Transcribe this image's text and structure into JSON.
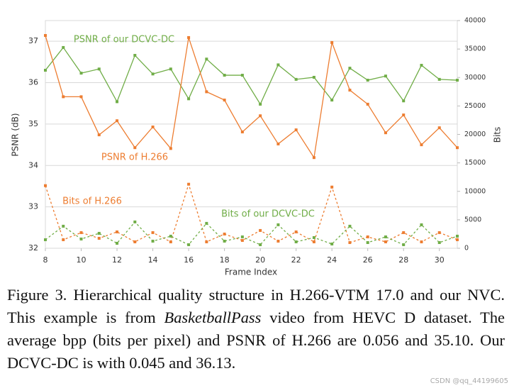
{
  "chart_data": {
    "type": "line",
    "x_label": "Frame Index",
    "y_label": "PSNR (dB)",
    "y2_label": "Bits",
    "x": [
      8,
      9,
      10,
      11,
      12,
      13,
      14,
      15,
      16,
      17,
      18,
      19,
      20,
      21,
      22,
      23,
      24,
      25,
      26,
      27,
      28,
      29,
      30,
      31
    ],
    "xlim": [
      8,
      31
    ],
    "xticks": [
      8,
      10,
      12,
      14,
      16,
      18,
      20,
      22,
      24,
      26,
      28,
      30
    ],
    "ylim": [
      32,
      37.5
    ],
    "yticks": [
      32,
      33,
      34,
      35,
      36,
      37
    ],
    "y2lim": [
      0,
      40000
    ],
    "y2ticks": [
      0,
      5000,
      10000,
      15000,
      20000,
      25000,
      30000,
      35000,
      40000
    ],
    "grid": true,
    "series": [
      {
        "name": "PSNR of our DCVC-DC",
        "color": "#70ad47",
        "linestyle": "solid",
        "axis": "y",
        "values": [
          36.3,
          36.85,
          36.23,
          36.33,
          35.54,
          36.66,
          36.21,
          36.33,
          35.61,
          36.57,
          36.18,
          36.18,
          35.48,
          36.43,
          36.08,
          36.13,
          35.58,
          36.35,
          36.06,
          36.16,
          35.56,
          36.42,
          36.08,
          36.06
        ]
      },
      {
        "name": "PSNR of H.266",
        "color": "#ed7d31",
        "linestyle": "solid",
        "axis": "y",
        "values": [
          37.14,
          35.66,
          35.66,
          34.74,
          35.08,
          34.43,
          34.93,
          34.41,
          37.09,
          35.78,
          35.58,
          34.81,
          35.2,
          34.52,
          34.86,
          34.19,
          36.97,
          35.82,
          35.48,
          34.79,
          35.22,
          34.5,
          34.91,
          34.43
        ]
      },
      {
        "name": "Bits of H.266",
        "color": "#ed7d31",
        "linestyle": "dashed",
        "axis": "y2",
        "values": [
          11000,
          1500,
          2750,
          1750,
          2875,
          1125,
          2750,
          1125,
          11250,
          1125,
          2500,
          1375,
          3125,
          1250,
          2875,
          1125,
          10750,
          1000,
          2000,
          1125,
          2750,
          1125,
          2750,
          1500
        ]
      },
      {
        "name": "Bits of our DCVC-DC",
        "color": "#70ad47",
        "linestyle": "dashed",
        "axis": "y2",
        "values": [
          1500,
          3875,
          1625,
          2625,
          875,
          4625,
          1250,
          2125,
          625,
          4375,
          1250,
          2000,
          625,
          4125,
          1125,
          1875,
          750,
          3875,
          1000,
          2000,
          625,
          4125,
          1000,
          2125
        ]
      }
    ]
  },
  "caption": [
    "Figure 3.  Hierarchical quality structure in H.266-VTM 17.0 and our NVC. This example is from ",
    "BasketballPass",
    " video from HEVC D dataset.  The average bpp (bits per pixel) and PSNR of H.266 are 0.056 and 35.10. Our DCVC-DC is with 0.045 and 36.13."
  ],
  "watermark": "CSDN @qq_44199605"
}
